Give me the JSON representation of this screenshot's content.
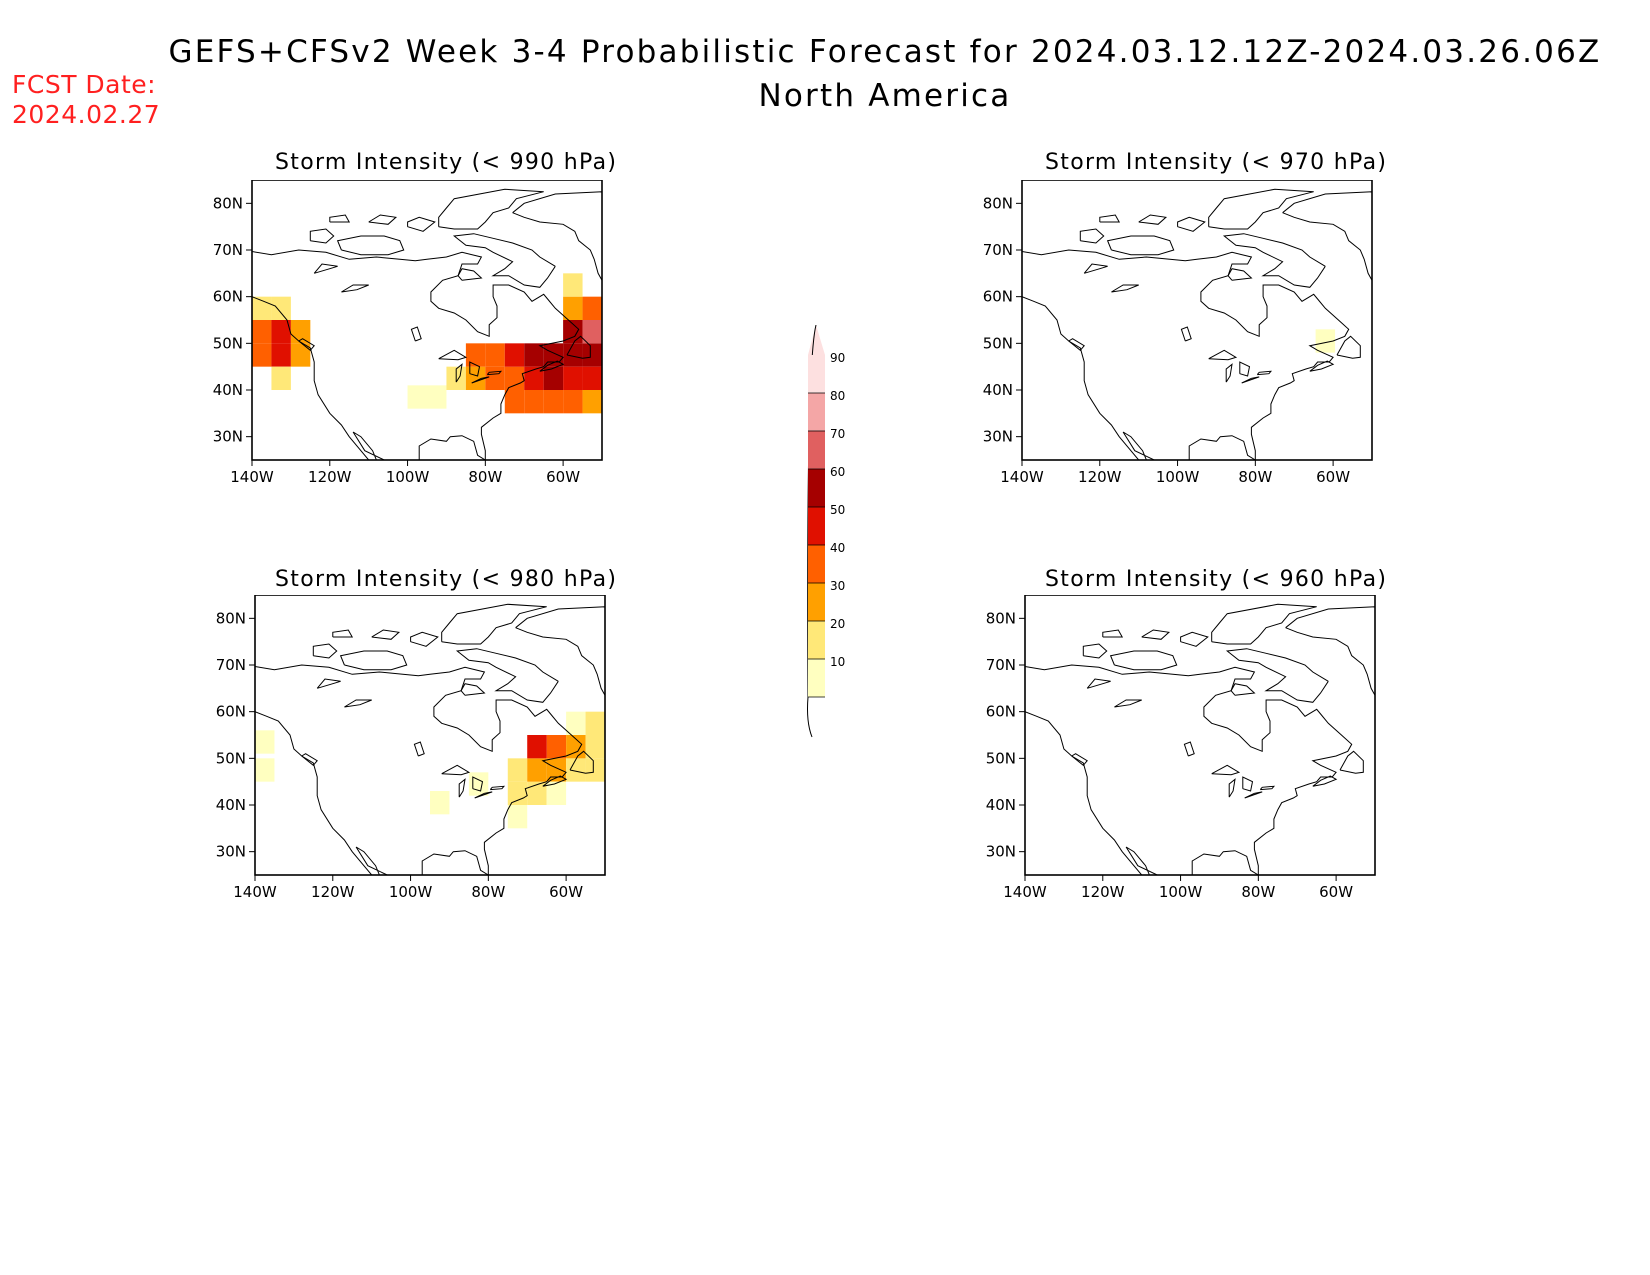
{
  "header": {
    "title": "GEFS+CFSv2 Week 3-4 Probabilistic Forecast for 2024.03.12.12Z-2024.03.26.06Z",
    "subtitle": "North America",
    "fcst_label": "FCST Date:",
    "fcst_value": "2024.02.27"
  },
  "colors": {
    "levels": [
      "#ffffc0",
      "#ffe878",
      "#ffa000",
      "#ff6000",
      "#e01000",
      "#a50000",
      "#e06060",
      "#f4a6a6",
      "#fde0e0"
    ],
    "coast": "#000000",
    "fcst_text": "#ff2020"
  },
  "chart_data": {
    "type": "heatmap",
    "axes": {
      "x_ticks": [
        "140W",
        "120W",
        "100W",
        "80W",
        "60W"
      ],
      "y_ticks": [
        "80N",
        "70N",
        "60N",
        "50N",
        "40N",
        "30N"
      ],
      "lon_range": [
        -140,
        -50
      ],
      "lat_range": [
        25,
        85
      ]
    },
    "colorbar": {
      "ticks": [
        10,
        20,
        30,
        40,
        50,
        60,
        70,
        80,
        90
      ]
    },
    "panels": [
      {
        "title": "Storm Intensity (< 990 hPa)",
        "cells": [
          {
            "lon": -137.5,
            "lat": 57.5,
            "v": 20
          },
          {
            "lon": -132.5,
            "lat": 57.5,
            "v": 20
          },
          {
            "lon": -137.5,
            "lat": 52.5,
            "v": 40
          },
          {
            "lon": -132.5,
            "lat": 52.5,
            "v": 50
          },
          {
            "lon": -127.5,
            "lat": 52.5,
            "v": 30
          },
          {
            "lon": -137.5,
            "lat": 47.5,
            "v": 40
          },
          {
            "lon": -132.5,
            "lat": 47.5,
            "v": 50
          },
          {
            "lon": -127.5,
            "lat": 47.5,
            "v": 30
          },
          {
            "lon": -132.5,
            "lat": 42.5,
            "v": 20
          },
          {
            "lon": -97.5,
            "lat": 38.5,
            "v": 10
          },
          {
            "lon": -92.5,
            "lat": 38.5,
            "v": 10
          },
          {
            "lon": -87.5,
            "lat": 42.5,
            "v": 20
          },
          {
            "lon": -82.5,
            "lat": 42.5,
            "v": 30
          },
          {
            "lon": -82.5,
            "lat": 47.5,
            "v": 40
          },
          {
            "lon": -77.5,
            "lat": 47.5,
            "v": 40
          },
          {
            "lon": -77.5,
            "lat": 42.5,
            "v": 40
          },
          {
            "lon": -72.5,
            "lat": 42.5,
            "v": 40
          },
          {
            "lon": -72.5,
            "lat": 47.5,
            "v": 50
          },
          {
            "lon": -67.5,
            "lat": 47.5,
            "v": 60
          },
          {
            "lon": -62.5,
            "lat": 47.5,
            "v": 60
          },
          {
            "lon": -57.5,
            "lat": 47.5,
            "v": 60
          },
          {
            "lon": -52.5,
            "lat": 47.5,
            "v": 60
          },
          {
            "lon": -67.5,
            "lat": 42.5,
            "v": 50
          },
          {
            "lon": -62.5,
            "lat": 42.5,
            "v": 60
          },
          {
            "lon": -57.5,
            "lat": 42.5,
            "v": 50
          },
          {
            "lon": -52.5,
            "lat": 42.5,
            "v": 50
          },
          {
            "lon": -72.5,
            "lat": 37.5,
            "v": 40
          },
          {
            "lon": -67.5,
            "lat": 37.5,
            "v": 40
          },
          {
            "lon": -62.5,
            "lat": 37.5,
            "v": 40
          },
          {
            "lon": -57.5,
            "lat": 37.5,
            "v": 40
          },
          {
            "lon": -52.5,
            "lat": 37.5,
            "v": 30
          },
          {
            "lon": -57.5,
            "lat": 52.5,
            "v": 60
          },
          {
            "lon": -52.5,
            "lat": 52.5,
            "v": 70
          },
          {
            "lon": -57.5,
            "lat": 57.5,
            "v": 30
          },
          {
            "lon": -52.5,
            "lat": 57.5,
            "v": 40
          },
          {
            "lon": -57.5,
            "lat": 62.5,
            "v": 20
          }
        ]
      },
      {
        "title": "Storm Intensity (< 970 hPa)",
        "cells": [
          {
            "lon": -62.0,
            "lat": 50.5,
            "v": 10
          }
        ]
      },
      {
        "title": "Storm Intensity (< 980 hPa)",
        "cells": [
          {
            "lon": -137.5,
            "lat": 47.5,
            "v": 10
          },
          {
            "lon": -137.5,
            "lat": 53.5,
            "v": 10
          },
          {
            "lon": -92.5,
            "lat": 40.5,
            "v": 10
          },
          {
            "lon": -82.5,
            "lat": 44.5,
            "v": 10
          },
          {
            "lon": -72.5,
            "lat": 42.5,
            "v": 20
          },
          {
            "lon": -72.5,
            "lat": 47.5,
            "v": 20
          },
          {
            "lon": -67.5,
            "lat": 42.5,
            "v": 20
          },
          {
            "lon": -67.5,
            "lat": 47.5,
            "v": 30
          },
          {
            "lon": -62.5,
            "lat": 47.5,
            "v": 30
          },
          {
            "lon": -62.5,
            "lat": 52.5,
            "v": 40
          },
          {
            "lon": -57.5,
            "lat": 47.5,
            "v": 20
          },
          {
            "lon": -57.5,
            "lat": 52.5,
            "v": 30
          },
          {
            "lon": -52.5,
            "lat": 47.5,
            "v": 20
          },
          {
            "lon": -52.5,
            "lat": 52.5,
            "v": 20
          },
          {
            "lon": -67.5,
            "lat": 52.5,
            "v": 50
          },
          {
            "lon": -57.5,
            "lat": 57.5,
            "v": 10
          },
          {
            "lon": -52.5,
            "lat": 57.5,
            "v": 20
          },
          {
            "lon": -62.5,
            "lat": 42.5,
            "v": 10
          },
          {
            "lon": -72.5,
            "lat": 37.5,
            "v": 10
          }
        ]
      },
      {
        "title": "Storm Intensity (< 960 hPa)",
        "cells": []
      }
    ]
  }
}
